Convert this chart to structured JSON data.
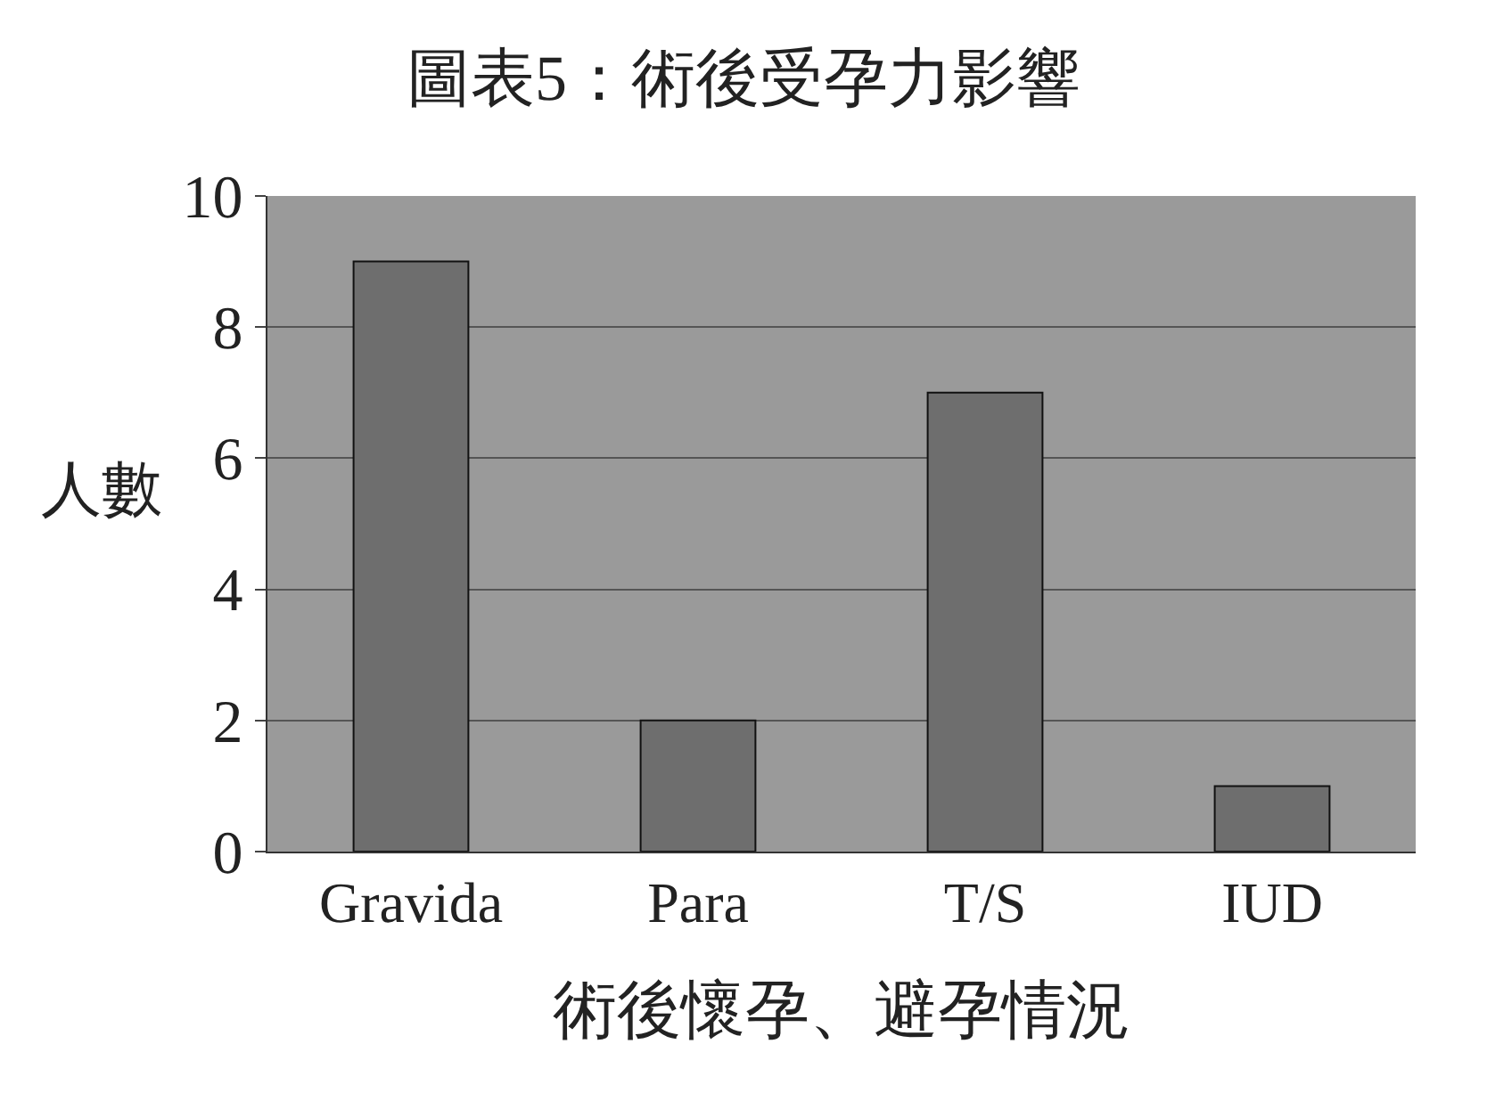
{
  "chart_data": {
    "type": "bar",
    "title": "圖表5：術後受孕力影響",
    "xlabel": "術後懷孕、避孕情況",
    "ylabel": "人數",
    "categories": [
      "Gravida",
      "Para",
      "T/S",
      "IUD"
    ],
    "values": [
      9,
      2,
      7,
      1
    ],
    "color": "#6e6e6e",
    "ylim": [
      0,
      10
    ],
    "yticks": [
      0,
      2,
      4,
      6,
      8,
      10
    ],
    "grid": "y"
  }
}
